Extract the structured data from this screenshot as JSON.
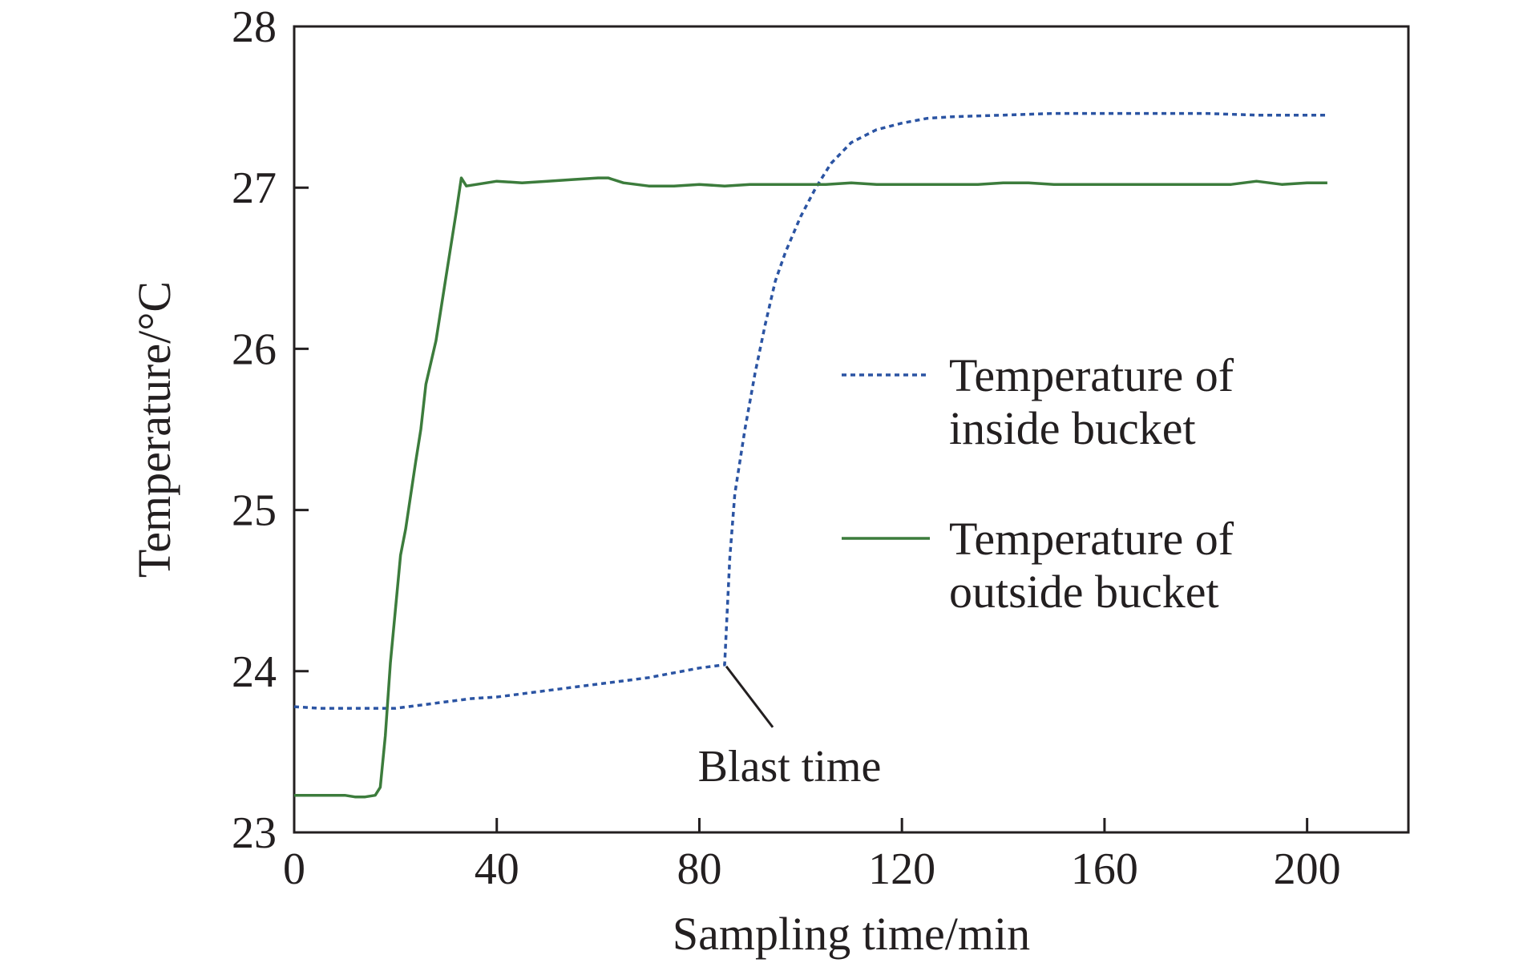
{
  "chart_data": {
    "type": "line",
    "title": "",
    "xlabel": "Sampling time/min",
    "ylabel": "Temperature/°C",
    "xlim": [
      0,
      220
    ],
    "ylim": [
      23,
      28
    ],
    "x_ticks": [
      0,
      40,
      80,
      120,
      160,
      200
    ],
    "y_ticks": [
      23,
      24,
      25,
      26,
      27,
      28
    ],
    "grid": false,
    "legend_position": "center-right",
    "series": [
      {
        "name": "Temperature of inside bucket",
        "name_lines": [
          "Temperature of",
          "inside bucket"
        ],
        "color": "#2b54a3",
        "style": "dotted",
        "points": [
          [
            0,
            23.78
          ],
          [
            5,
            23.77
          ],
          [
            10,
            23.77
          ],
          [
            15,
            23.77
          ],
          [
            20,
            23.77
          ],
          [
            25,
            23.79
          ],
          [
            30,
            23.81
          ],
          [
            35,
            23.83
          ],
          [
            40,
            23.84
          ],
          [
            45,
            23.86
          ],
          [
            50,
            23.88
          ],
          [
            55,
            23.9
          ],
          [
            60,
            23.92
          ],
          [
            65,
            23.94
          ],
          [
            70,
            23.96
          ],
          [
            75,
            23.99
          ],
          [
            80,
            24.02
          ],
          [
            85,
            24.04
          ],
          [
            86,
            24.7
          ],
          [
            87,
            25.1
          ],
          [
            89,
            25.5
          ],
          [
            91,
            25.85
          ],
          [
            93,
            26.15
          ],
          [
            95,
            26.42
          ],
          [
            97,
            26.6
          ],
          [
            100,
            26.82
          ],
          [
            103,
            27.0
          ],
          [
            106,
            27.15
          ],
          [
            110,
            27.28
          ],
          [
            115,
            27.36
          ],
          [
            120,
            27.4
          ],
          [
            125,
            27.43
          ],
          [
            130,
            27.44
          ],
          [
            140,
            27.45
          ],
          [
            150,
            27.46
          ],
          [
            160,
            27.46
          ],
          [
            170,
            27.46
          ],
          [
            180,
            27.46
          ],
          [
            190,
            27.45
          ],
          [
            200,
            27.45
          ],
          [
            204,
            27.45
          ]
        ]
      },
      {
        "name": "Temperature of outside bucket",
        "name_lines": [
          "Temperature of",
          "outside bucket"
        ],
        "color": "#3c7c3c",
        "style": "solid",
        "points": [
          [
            0,
            23.23
          ],
          [
            5,
            23.23
          ],
          [
            10,
            23.23
          ],
          [
            12,
            23.22
          ],
          [
            14,
            23.22
          ],
          [
            16,
            23.23
          ],
          [
            17,
            23.28
          ],
          [
            18,
            23.6
          ],
          [
            19,
            24.05
          ],
          [
            21,
            24.72
          ],
          [
            22,
            24.88
          ],
          [
            24,
            25.3
          ],
          [
            25,
            25.5
          ],
          [
            26,
            25.78
          ],
          [
            28,
            26.05
          ],
          [
            30,
            26.45
          ],
          [
            32,
            26.85
          ],
          [
            33,
            27.06
          ],
          [
            34,
            27.01
          ],
          [
            36,
            27.02
          ],
          [
            40,
            27.04
          ],
          [
            45,
            27.03
          ],
          [
            50,
            27.04
          ],
          [
            55,
            27.05
          ],
          [
            60,
            27.06
          ],
          [
            62,
            27.06
          ],
          [
            65,
            27.03
          ],
          [
            70,
            27.01
          ],
          [
            75,
            27.01
          ],
          [
            80,
            27.02
          ],
          [
            85,
            27.01
          ],
          [
            90,
            27.02
          ],
          [
            95,
            27.02
          ],
          [
            100,
            27.02
          ],
          [
            105,
            27.02
          ],
          [
            110,
            27.03
          ],
          [
            115,
            27.02
          ],
          [
            120,
            27.02
          ],
          [
            125,
            27.02
          ],
          [
            130,
            27.02
          ],
          [
            135,
            27.02
          ],
          [
            140,
            27.03
          ],
          [
            145,
            27.03
          ],
          [
            150,
            27.02
          ],
          [
            155,
            27.02
          ],
          [
            160,
            27.02
          ],
          [
            165,
            27.02
          ],
          [
            170,
            27.02
          ],
          [
            175,
            27.02
          ],
          [
            180,
            27.02
          ],
          [
            185,
            27.02
          ],
          [
            190,
            27.04
          ],
          [
            195,
            27.02
          ],
          [
            200,
            27.03
          ],
          [
            204,
            27.03
          ]
        ]
      }
    ],
    "annotations": [
      {
        "text": "Blast time",
        "x": 85,
        "y": 24.04
      }
    ]
  }
}
